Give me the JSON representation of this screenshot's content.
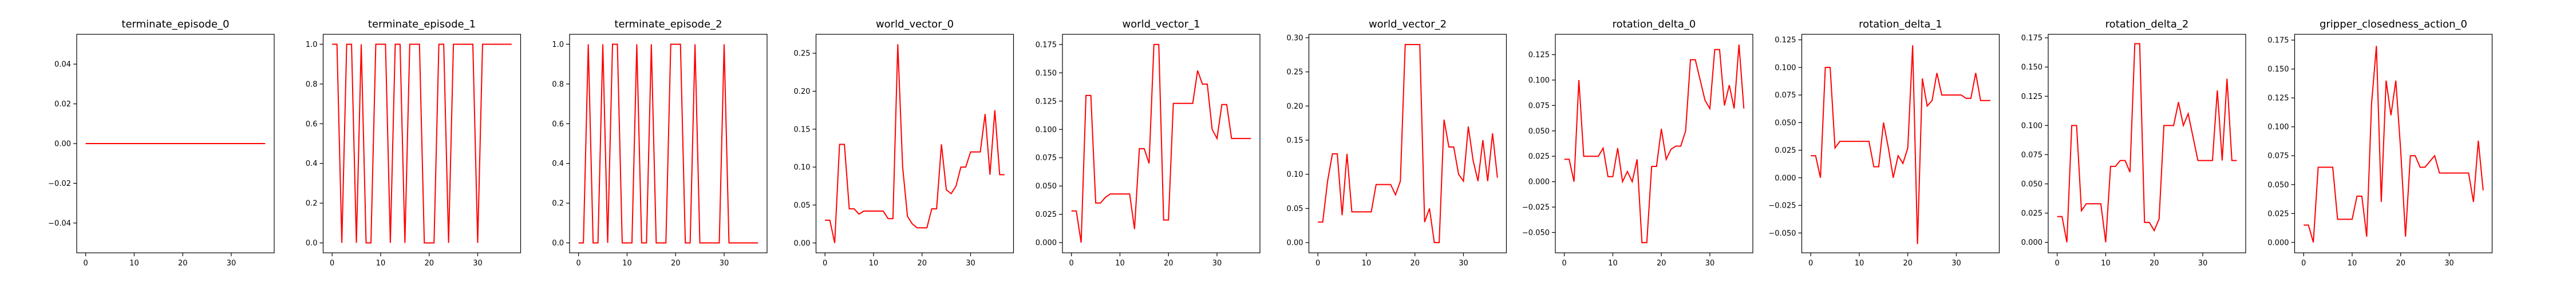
{
  "series_color": "#ff0000",
  "chart_data": [
    {
      "type": "line",
      "title": "terminate_episode_0",
      "x": [
        0,
        1,
        2,
        3,
        4,
        5,
        6,
        7,
        8,
        9,
        10,
        11,
        12,
        13,
        14,
        15,
        16,
        17,
        18,
        19,
        20,
        21,
        22,
        23,
        24,
        25,
        26,
        27,
        28,
        29,
        30,
        31,
        32,
        33,
        34,
        35,
        36,
        37
      ],
      "series": [
        {
          "values": [
            0,
            0,
            0,
            0,
            0,
            0,
            0,
            0,
            0,
            0,
            0,
            0,
            0,
            0,
            0,
            0,
            0,
            0,
            0,
            0,
            0,
            0,
            0,
            0,
            0,
            0,
            0,
            0,
            0,
            0,
            0,
            0,
            0,
            0,
            0,
            0,
            0,
            0
          ]
        }
      ],
      "xlim": [
        -1.85,
        38.85
      ],
      "ylim": [
        -0.055,
        0.055
      ],
      "xticks": [
        0,
        10,
        20,
        30
      ],
      "xtick_labels": [
        "0",
        "10",
        "20",
        "30"
      ],
      "yticks": [
        -0.04,
        -0.02,
        0.0,
        0.02,
        0.04
      ],
      "ytick_labels": [
        "−0.04",
        "−0.02",
        "0.00",
        "0.02",
        "0.04"
      ],
      "xlabel": "",
      "ylabel": "",
      "grid": false
    },
    {
      "type": "line",
      "title": "terminate_episode_1",
      "x": [
        0,
        1,
        2,
        3,
        4,
        5,
        6,
        7,
        8,
        9,
        10,
        11,
        12,
        13,
        14,
        15,
        16,
        17,
        18,
        19,
        20,
        21,
        22,
        23,
        24,
        25,
        26,
        27,
        28,
        29,
        30,
        31,
        32,
        33,
        34,
        35,
        36,
        37
      ],
      "series": [
        {
          "values": [
            1,
            1,
            0,
            1,
            1,
            0,
            1,
            0,
            0,
            1,
            1,
            1,
            0,
            1,
            1,
            0,
            1,
            1,
            1,
            0,
            0,
            0,
            1,
            1,
            0,
            1,
            1,
            1,
            1,
            1,
            0,
            1,
            1,
            1,
            1,
            1,
            1,
            1
          ]
        }
      ],
      "xlim": [
        -1.85,
        38.85
      ],
      "ylim": [
        -0.05,
        1.05
      ],
      "xticks": [
        0,
        10,
        20,
        30
      ],
      "xtick_labels": [
        "0",
        "10",
        "20",
        "30"
      ],
      "yticks": [
        0.0,
        0.2,
        0.4,
        0.6,
        0.8,
        1.0
      ],
      "ytick_labels": [
        "0.0",
        "0.2",
        "0.4",
        "0.6",
        "0.8",
        "1.0"
      ],
      "xlabel": "",
      "ylabel": "",
      "grid": false
    },
    {
      "type": "line",
      "title": "terminate_episode_2",
      "x": [
        0,
        1,
        2,
        3,
        4,
        5,
        6,
        7,
        8,
        9,
        10,
        11,
        12,
        13,
        14,
        15,
        16,
        17,
        18,
        19,
        20,
        21,
        22,
        23,
        24,
        25,
        26,
        27,
        28,
        29,
        30,
        31,
        32,
        33,
        34,
        35,
        36,
        37
      ],
      "series": [
        {
          "values": [
            0,
            0,
            1,
            0,
            0,
            1,
            0,
            1,
            1,
            0,
            0,
            0,
            1,
            0,
            0,
            1,
            0,
            0,
            0,
            1,
            1,
            1,
            0,
            0,
            1,
            0,
            0,
            0,
            0,
            0,
            1,
            0,
            0,
            0,
            0,
            0,
            0,
            0
          ]
        }
      ],
      "xlim": [
        -1.85,
        38.85
      ],
      "ylim": [
        -0.05,
        1.05
      ],
      "xticks": [
        0,
        10,
        20,
        30
      ],
      "xtick_labels": [
        "0",
        "10",
        "20",
        "30"
      ],
      "yticks": [
        0.0,
        0.2,
        0.4,
        0.6,
        0.8,
        1.0
      ],
      "ytick_labels": [
        "0.0",
        "0.2",
        "0.4",
        "0.6",
        "0.8",
        "1.0"
      ],
      "xlabel": "",
      "ylabel": "",
      "grid": false
    },
    {
      "type": "line",
      "title": "world_vector_0",
      "x": [
        0,
        1,
        2,
        3,
        4,
        5,
        6,
        7,
        8,
        9,
        10,
        11,
        12,
        13,
        14,
        15,
        16,
        17,
        18,
        19,
        20,
        21,
        22,
        23,
        24,
        25,
        26,
        27,
        28,
        29,
        30,
        31,
        32,
        33,
        34,
        35,
        36,
        37
      ],
      "series": [
        {
          "values": [
            0.03,
            0.03,
            0.0,
            0.13,
            0.13,
            0.045,
            0.045,
            0.038,
            0.042,
            0.042,
            0.042,
            0.042,
            0.042,
            0.032,
            0.032,
            0.262,
            0.1,
            0.035,
            0.025,
            0.02,
            0.02,
            0.02,
            0.045,
            0.045,
            0.13,
            0.07,
            0.065,
            0.075,
            0.1,
            0.1,
            0.12,
            0.12,
            0.12,
            0.17,
            0.09,
            0.175,
            0.09,
            0.09
          ]
        }
      ],
      "xlim": [
        -1.85,
        38.85
      ],
      "ylim": [
        -0.013,
        0.275
      ],
      "xticks": [
        0,
        10,
        20,
        30
      ],
      "xtick_labels": [
        "0",
        "10",
        "20",
        "30"
      ],
      "yticks": [
        0.0,
        0.05,
        0.1,
        0.15,
        0.2,
        0.25
      ],
      "ytick_labels": [
        "0.00",
        "0.05",
        "0.10",
        "0.15",
        "0.20",
        "0.25"
      ],
      "xlabel": "",
      "ylabel": "",
      "grid": false
    },
    {
      "type": "line",
      "title": "world_vector_1",
      "x": [
        0,
        1,
        2,
        3,
        4,
        5,
        6,
        7,
        8,
        9,
        10,
        11,
        12,
        13,
        14,
        15,
        16,
        17,
        18,
        19,
        20,
        21,
        22,
        23,
        24,
        25,
        26,
        27,
        28,
        29,
        30,
        31,
        32,
        33,
        34,
        35,
        36,
        37
      ],
      "series": [
        {
          "values": [
            0.028,
            0.028,
            0.0,
            0.13,
            0.13,
            0.035,
            0.035,
            0.04,
            0.043,
            0.043,
            0.043,
            0.043,
            0.043,
            0.012,
            0.083,
            0.083,
            0.07,
            0.175,
            0.175,
            0.02,
            0.02,
            0.123,
            0.123,
            0.123,
            0.123,
            0.123,
            0.152,
            0.14,
            0.14,
            0.1,
            0.092,
            0.122,
            0.122,
            0.092,
            0.092,
            0.092,
            0.092,
            0.092
          ]
        }
      ],
      "xlim": [
        -1.85,
        38.85
      ],
      "ylim": [
        -0.009,
        0.184
      ],
      "xticks": [
        0,
        10,
        20,
        30
      ],
      "xtick_labels": [
        "0",
        "10",
        "20",
        "30"
      ],
      "yticks": [
        0.0,
        0.025,
        0.05,
        0.075,
        0.1,
        0.125,
        0.15,
        0.175
      ],
      "ytick_labels": [
        "0.000",
        "0.025",
        "0.050",
        "0.075",
        "0.100",
        "0.125",
        "0.150",
        "0.175"
      ],
      "xlabel": "",
      "ylabel": "",
      "grid": false
    },
    {
      "type": "line",
      "title": "world_vector_2",
      "x": [
        0,
        1,
        2,
        3,
        4,
        5,
        6,
        7,
        8,
        9,
        10,
        11,
        12,
        13,
        14,
        15,
        16,
        17,
        18,
        19,
        20,
        21,
        22,
        23,
        24,
        25,
        26,
        27,
        28,
        29,
        30,
        31,
        32,
        33,
        34,
        35,
        36,
        37
      ],
      "series": [
        {
          "values": [
            0.03,
            0.03,
            0.09,
            0.13,
            0.13,
            0.04,
            0.13,
            0.045,
            0.045,
            0.045,
            0.045,
            0.045,
            0.085,
            0.085,
            0.085,
            0.085,
            0.07,
            0.09,
            0.29,
            0.29,
            0.29,
            0.29,
            0.03,
            0.05,
            0.0,
            0.0,
            0.18,
            0.14,
            0.14,
            0.1,
            0.09,
            0.17,
            0.12,
            0.09,
            0.15,
            0.09,
            0.16,
            0.095
          ]
        }
      ],
      "xlim": [
        -1.85,
        38.85
      ],
      "ylim": [
        -0.015,
        0.305
      ],
      "xticks": [
        0,
        10,
        20,
        30
      ],
      "xtick_labels": [
        "0",
        "10",
        "20",
        "30"
      ],
      "yticks": [
        0.0,
        0.05,
        0.1,
        0.15,
        0.2,
        0.25,
        0.3
      ],
      "ytick_labels": [
        "0.00",
        "0.05",
        "0.10",
        "0.15",
        "0.20",
        "0.25",
        "0.30"
      ],
      "xlabel": "",
      "ylabel": "",
      "grid": false
    },
    {
      "type": "line",
      "title": "rotation_delta_0",
      "x": [
        0,
        1,
        2,
        3,
        4,
        5,
        6,
        7,
        8,
        9,
        10,
        11,
        12,
        13,
        14,
        15,
        16,
        17,
        18,
        19,
        20,
        21,
        22,
        23,
        24,
        25,
        26,
        27,
        28,
        29,
        30,
        31,
        32,
        33,
        34,
        35,
        36,
        37
      ],
      "series": [
        {
          "values": [
            0.022,
            0.022,
            0.0,
            0.1,
            0.025,
            0.025,
            0.025,
            0.025,
            0.033,
            0.005,
            0.005,
            0.033,
            0.0,
            0.01,
            0.0,
            0.022,
            -0.06,
            -0.06,
            0.015,
            0.015,
            0.052,
            0.022,
            0.032,
            0.035,
            0.035,
            0.05,
            0.12,
            0.12,
            0.1,
            0.08,
            0.072,
            0.13,
            0.13,
            0.075,
            0.095,
            0.072,
            0.135,
            0.072
          ]
        }
      ],
      "xlim": [
        -1.85,
        38.85
      ],
      "ylim": [
        -0.07,
        0.145
      ],
      "xticks": [
        0,
        10,
        20,
        30
      ],
      "xtick_labels": [
        "0",
        "10",
        "20",
        "30"
      ],
      "yticks": [
        -0.05,
        -0.025,
        0.0,
        0.025,
        0.05,
        0.075,
        0.1,
        0.125
      ],
      "ytick_labels": [
        "−0.050",
        "−0.025",
        "0.000",
        "0.025",
        "0.050",
        "0.075",
        "0.100",
        "0.125"
      ],
      "xlabel": "",
      "ylabel": "",
      "grid": false
    },
    {
      "type": "line",
      "title": "rotation_delta_1",
      "x": [
        0,
        1,
        2,
        3,
        4,
        5,
        6,
        7,
        8,
        9,
        10,
        11,
        12,
        13,
        14,
        15,
        16,
        17,
        18,
        19,
        20,
        21,
        22,
        23,
        24,
        25,
        26,
        27,
        28,
        29,
        30,
        31,
        32,
        33,
        34,
        35,
        36,
        37
      ],
      "series": [
        {
          "values": [
            0.02,
            0.02,
            0.0,
            0.1,
            0.1,
            0.027,
            0.033,
            0.033,
            0.033,
            0.033,
            0.033,
            0.033,
            0.033,
            0.01,
            0.01,
            0.05,
            0.027,
            0.0,
            0.02,
            0.013,
            0.027,
            0.12,
            -0.06,
            0.09,
            0.065,
            0.07,
            0.095,
            0.075,
            0.075,
            0.075,
            0.075,
            0.075,
            0.072,
            0.072,
            0.095,
            0.07,
            0.07,
            0.07
          ]
        }
      ],
      "xlim": [
        -1.85,
        38.85
      ],
      "ylim": [
        -0.068,
        0.13
      ],
      "xticks": [
        0,
        10,
        20,
        30
      ],
      "xtick_labels": [
        "0",
        "10",
        "20",
        "30"
      ],
      "yticks": [
        -0.05,
        -0.025,
        0.0,
        0.025,
        0.05,
        0.075,
        0.1,
        0.125
      ],
      "ytick_labels": [
        "−0.050",
        "−0.025",
        "0.000",
        "0.025",
        "0.050",
        "0.075",
        "0.100",
        "0.125"
      ],
      "xlabel": "",
      "ylabel": "",
      "grid": false
    },
    {
      "type": "line",
      "title": "rotation_delta_2",
      "x": [
        0,
        1,
        2,
        3,
        4,
        5,
        6,
        7,
        8,
        9,
        10,
        11,
        12,
        13,
        14,
        15,
        16,
        17,
        18,
        19,
        20,
        21,
        22,
        23,
        24,
        25,
        26,
        27,
        28,
        29,
        30,
        31,
        32,
        33,
        34,
        35,
        36,
        37
      ],
      "series": [
        {
          "values": [
            0.022,
            0.022,
            0.0,
            0.1,
            0.1,
            0.027,
            0.033,
            0.033,
            0.033,
            0.033,
            0.0,
            0.065,
            0.065,
            0.07,
            0.07,
            0.06,
            0.17,
            0.17,
            0.017,
            0.017,
            0.01,
            0.02,
            0.1,
            0.1,
            0.1,
            0.12,
            0.1,
            0.11,
            0.09,
            0.07,
            0.07,
            0.07,
            0.07,
            0.13,
            0.07,
            0.14,
            0.07,
            0.07
          ]
        }
      ],
      "xlim": [
        -1.85,
        38.85
      ],
      "ylim": [
        -0.009,
        0.178
      ],
      "xticks": [
        0,
        10,
        20,
        30
      ],
      "xtick_labels": [
        "0",
        "10",
        "20",
        "30"
      ],
      "yticks": [
        0.0,
        0.025,
        0.05,
        0.075,
        0.1,
        0.125,
        0.15,
        0.175
      ],
      "ytick_labels": [
        "0.000",
        "0.025",
        "0.050",
        "0.075",
        "0.100",
        "0.125",
        "0.150",
        "0.175"
      ],
      "xlabel": "",
      "ylabel": "",
      "grid": false
    },
    {
      "type": "line",
      "title": "gripper_closedness_action_0",
      "x": [
        0,
        1,
        2,
        3,
        4,
        5,
        6,
        7,
        8,
        9,
        10,
        11,
        12,
        13,
        14,
        15,
        16,
        17,
        18,
        19,
        20,
        21,
        22,
        23,
        24,
        25,
        26,
        27,
        28,
        29,
        30,
        31,
        32,
        33,
        34,
        35,
        36,
        37
      ],
      "series": [
        {
          "values": [
            0.015,
            0.015,
            0.0,
            0.065,
            0.065,
            0.065,
            0.065,
            0.02,
            0.02,
            0.02,
            0.02,
            0.04,
            0.04,
            0.005,
            0.12,
            0.17,
            0.035,
            0.14,
            0.11,
            0.14,
            0.08,
            0.005,
            0.075,
            0.075,
            0.065,
            0.065,
            0.07,
            0.075,
            0.06,
            0.06,
            0.06,
            0.06,
            0.06,
            0.06,
            0.06,
            0.035,
            0.088,
            0.045
          ]
        }
      ],
      "xlim": [
        -1.85,
        38.85
      ],
      "ylim": [
        -0.009,
        0.18
      ],
      "xticks": [
        0,
        10,
        20,
        30
      ],
      "xtick_labels": [
        "0",
        "10",
        "20",
        "30"
      ],
      "yticks": [
        0.0,
        0.025,
        0.05,
        0.075,
        0.1,
        0.125,
        0.15,
        0.175
      ],
      "ytick_labels": [
        "0.000",
        "0.025",
        "0.050",
        "0.075",
        "0.100",
        "0.125",
        "0.150",
        "0.175"
      ],
      "xlabel": "",
      "ylabel": "",
      "grid": false
    }
  ]
}
